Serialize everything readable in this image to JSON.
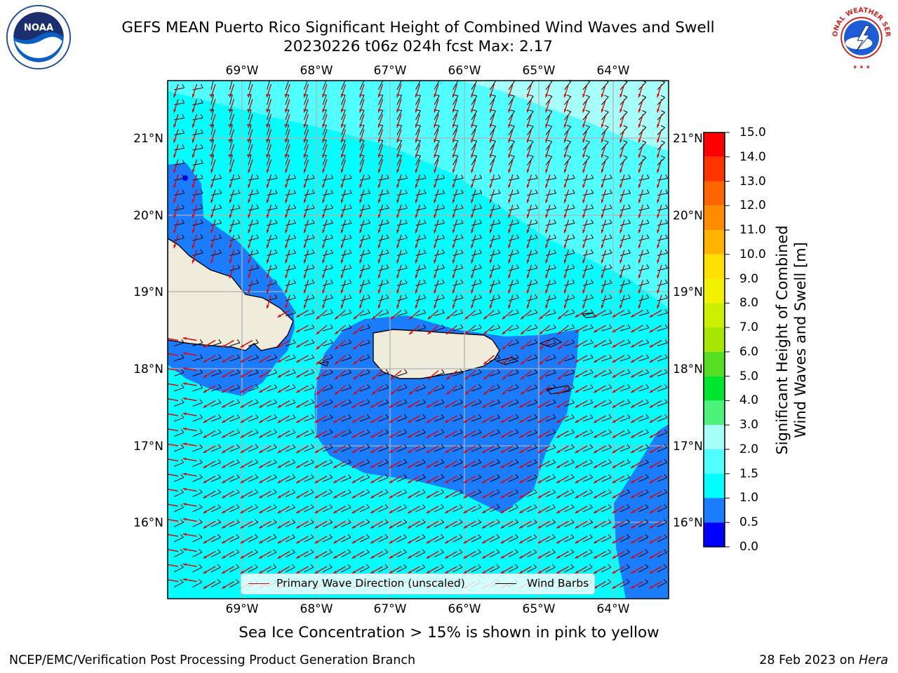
{
  "title": {
    "line1": "GEFS MEAN Puerto Rico Significant Height of Combined Wind Waves and Swell",
    "line2": "20230226 t06z 024h fcst   Max: 2.17"
  },
  "logos": {
    "left": {
      "name": "noaa-logo",
      "text": "NOAA"
    },
    "right": {
      "name": "nws-logo",
      "text": "NATIONAL WEATHER SERVICE"
    }
  },
  "map": {
    "lon_labels": [
      "69°W",
      "68°W",
      "67°W",
      "66°W",
      "65°W",
      "64°W"
    ],
    "lat_labels": [
      "21°N",
      "20°N",
      "19°N",
      "18°N",
      "17°N",
      "16°N"
    ],
    "grid": true,
    "land_color": "#efecdc",
    "colors": {
      "sea_0_5_1_0": "#1a7cff",
      "sea_1_0_1_5": "#00ffff",
      "sea_1_5_2_0": "#50ffff",
      "sea_2_0_3_0": "#a6fff8",
      "wave_arrow": "#e60000",
      "wind_barb": "#000000"
    }
  },
  "legend": {
    "items": [
      {
        "label": "Primary Wave Direction (unscaled)",
        "color": "#e60000"
      },
      {
        "label": "Wind Barbs",
        "color": "#000000"
      }
    ]
  },
  "colorbar": {
    "title_line1": "Significant Height of Combined",
    "title_line2": "Wind Waves and Swell [m]",
    "ticks": [
      "15.0",
      "14.0",
      "13.0",
      "12.0",
      "11.0",
      "10.0",
      "9.0",
      "8.0",
      "7.0",
      "6.0",
      "5.0",
      "4.0",
      "3.0",
      "2.0",
      "1.5",
      "1.0",
      "0.5",
      "0.0"
    ],
    "bands": [
      {
        "level_min": 14.0,
        "level_max": 15.0,
        "color": "#ff0000"
      },
      {
        "level_min": 13.0,
        "level_max": 14.0,
        "color": "#ff3300"
      },
      {
        "level_min": 12.0,
        "level_max": 13.0,
        "color": "#ff6600"
      },
      {
        "level_min": 11.0,
        "level_max": 12.0,
        "color": "#ff8c00"
      },
      {
        "level_min": 10.0,
        "level_max": 11.0,
        "color": "#ffb300"
      },
      {
        "level_min": 9.0,
        "level_max": 10.0,
        "color": "#ffe000"
      },
      {
        "level_min": 8.0,
        "level_max": 9.0,
        "color": "#f2f200"
      },
      {
        "level_min": 7.0,
        "level_max": 8.0,
        "color": "#ccf000"
      },
      {
        "level_min": 6.0,
        "level_max": 7.0,
        "color": "#a6e600"
      },
      {
        "level_min": 5.0,
        "level_max": 6.0,
        "color": "#55dd22"
      },
      {
        "level_min": 4.0,
        "level_max": 5.0,
        "color": "#00e62e"
      },
      {
        "level_min": 3.0,
        "level_max": 4.0,
        "color": "#4cf27a"
      },
      {
        "level_min": 2.0,
        "level_max": 3.0,
        "color": "#a6fff8"
      },
      {
        "level_min": 1.5,
        "level_max": 2.0,
        "color": "#50ffff"
      },
      {
        "level_min": 1.0,
        "level_max": 1.5,
        "color": "#00ffff"
      },
      {
        "level_min": 0.5,
        "level_max": 1.0,
        "color": "#1a7cff"
      },
      {
        "level_min": 0.0,
        "level_max": 0.5,
        "color": "#0000ff"
      }
    ]
  },
  "note": "Sea Ice Concentration > 15% is shown in pink to yellow",
  "footer": {
    "left": "NCEP/EMC/Verification Post Processing Product Generation Branch",
    "right_prefix": "28 Feb 2023 on ",
    "right_host": "Hera"
  }
}
